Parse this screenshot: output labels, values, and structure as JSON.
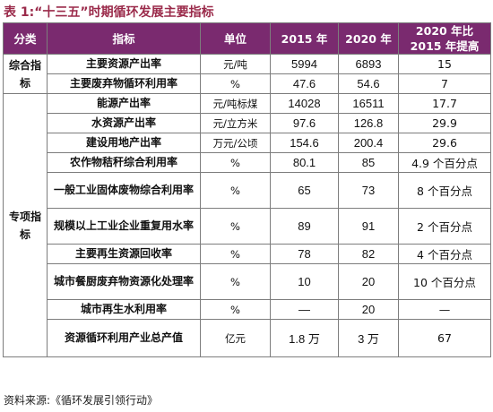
{
  "title": "表 1:“十三五”时期循环发展主要指标",
  "headers": [
    "分类",
    "指标",
    "单位",
    "2015 年",
    "2020 年",
    "2020 年比 2015 年提高"
  ],
  "categories": [
    "综合指标",
    "专项指标"
  ],
  "rows": [
    {
      "indicator": "主要资源产出率",
      "unit": "元/吨",
      "y2015": "5994",
      "y2020": "6893",
      "improve": "15"
    },
    {
      "indicator": "主要废弃物循环利用率",
      "unit": "%",
      "y2015": "47.6",
      "y2020": "54.6",
      "improve": "7"
    },
    {
      "indicator": "能源产出率",
      "unit": "元/吨标煤",
      "y2015": "14028",
      "y2020": "16511",
      "improve": "17.7"
    },
    {
      "indicator": "水资源产出率",
      "unit": "元/立方米",
      "y2015": "97.6",
      "y2020": "126.8",
      "improve": "29.9"
    },
    {
      "indicator": "建设用地产出率",
      "unit": "万元/公顷",
      "y2015": "154.6",
      "y2020": "200.4",
      "improve": "29.6"
    },
    {
      "indicator": "农作物秸秆综合利用率",
      "unit": "%",
      "y2015": "80.1",
      "y2020": "85",
      "improve": "4.9 个百分点"
    },
    {
      "indicator": "一般工业固体废物综合利用率",
      "unit": "%",
      "y2015": "65",
      "y2020": "73",
      "improve": "8 个百分点"
    },
    {
      "indicator": "规模以上工业企业重复用水率",
      "unit": "%",
      "y2015": "89",
      "y2020": "91",
      "improve": "2 个百分点"
    },
    {
      "indicator": "主要再生资源回收率",
      "unit": "%",
      "y2015": "78",
      "y2020": "82",
      "improve": "4 个百分点"
    },
    {
      "indicator": "城市餐厨废弃物资源化处理率",
      "unit": "%",
      "y2015": "10",
      "y2020": "20",
      "improve": "10 个百分点"
    },
    {
      "indicator": "城市再生水利用率",
      "unit": "%",
      "y2015": "—",
      "y2020": "20",
      "improve": "—"
    },
    {
      "indicator": "资源循环利用产业总产值",
      "unit": "亿元",
      "y2015": "1.8 万",
      "y2020": "3 万",
      "improve": "67"
    }
  ],
  "source": "资料来源:《循环发展引领行动》"
}
